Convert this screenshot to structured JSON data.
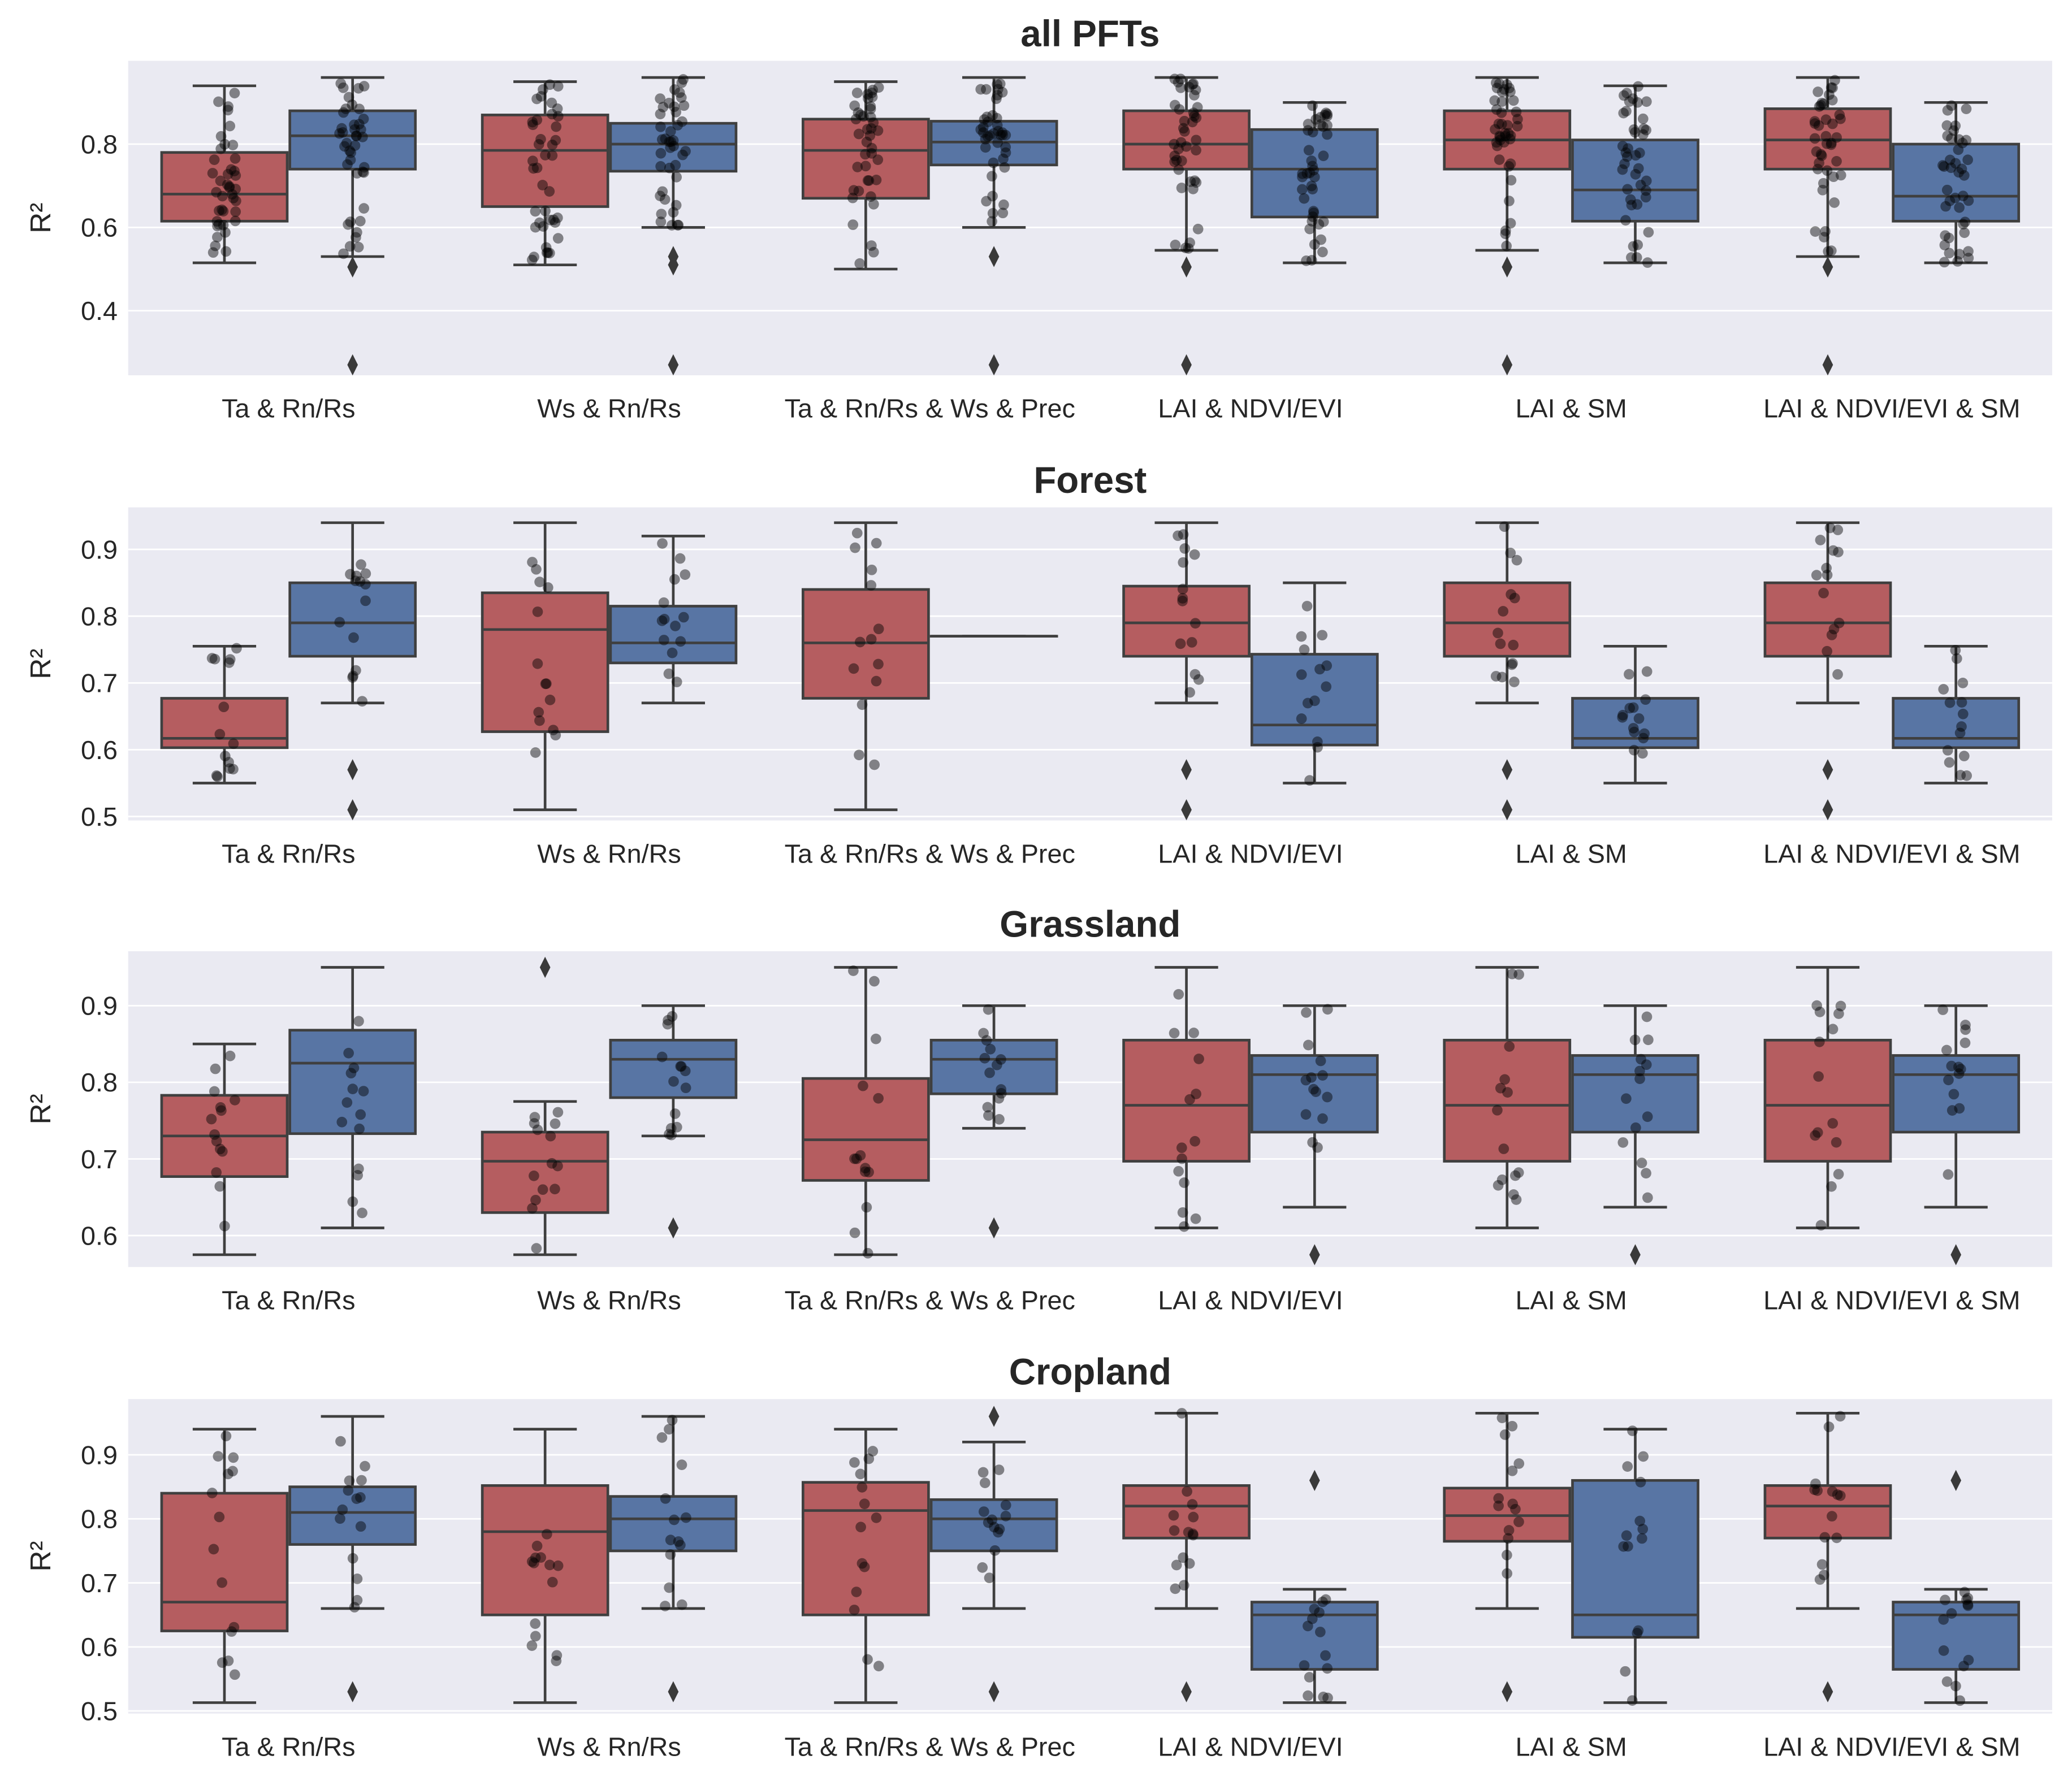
{
  "colors": {
    "red": "#b55d60",
    "blue": "#5875a4",
    "background": "#eaeaf2",
    "line": "#3f3f3f",
    "grid": "#ffffff"
  },
  "chart_data": [
    {
      "type": "box",
      "title": "all PFTs",
      "ylabel": "R²",
      "ylim": [
        0.245,
        1.0
      ],
      "yticks": [
        "0.4",
        "0.6",
        "0.8"
      ],
      "ytick_values": [
        0.4,
        0.6,
        0.8
      ],
      "categories": [
        "Ta & Rn/Rs",
        "Ws & Rn/Rs",
        "Ta & Rn/Rs & Ws & Prec",
        "LAI & NDVI/EVI",
        "LAI & SM",
        "LAI & NDVI/EVI & SM"
      ],
      "series": [
        {
          "name": "red",
          "boxes": [
            {
              "q1": 0.615,
              "med": 0.68,
              "q3": 0.78,
              "lo": 0.515,
              "hi": 0.94,
              "fliers": []
            },
            {
              "q1": 0.65,
              "med": 0.785,
              "q3": 0.87,
              "lo": 0.51,
              "hi": 0.95,
              "fliers": []
            },
            {
              "q1": 0.67,
              "med": 0.785,
              "q3": 0.86,
              "lo": 0.5,
              "hi": 0.95,
              "fliers": []
            },
            {
              "q1": 0.74,
              "med": 0.8,
              "q3": 0.88,
              "lo": 0.545,
              "hi": 0.96,
              "fliers": [
                0.505,
                0.27
              ]
            },
            {
              "q1": 0.74,
              "med": 0.81,
              "q3": 0.88,
              "lo": 0.545,
              "hi": 0.96,
              "fliers": [
                0.505,
                0.27
              ]
            },
            {
              "q1": 0.74,
              "med": 0.81,
              "q3": 0.885,
              "lo": 0.53,
              "hi": 0.96,
              "fliers": [
                0.505,
                0.27
              ]
            }
          ]
        },
        {
          "name": "blue",
          "boxes": [
            {
              "q1": 0.74,
              "med": 0.82,
              "q3": 0.88,
              "lo": 0.53,
              "hi": 0.96,
              "fliers": [
                0.505,
                0.27
              ]
            },
            {
              "q1": 0.735,
              "med": 0.8,
              "q3": 0.85,
              "lo": 0.6,
              "hi": 0.96,
              "fliers": [
                0.53,
                0.51,
                0.27
              ]
            },
            {
              "q1": 0.75,
              "med": 0.805,
              "q3": 0.855,
              "lo": 0.6,
              "hi": 0.96,
              "fliers": [
                0.53,
                0.27
              ]
            },
            {
              "q1": 0.625,
              "med": 0.74,
              "q3": 0.835,
              "lo": 0.515,
              "hi": 0.9,
              "fliers": []
            },
            {
              "q1": 0.615,
              "med": 0.69,
              "q3": 0.81,
              "lo": 0.515,
              "hi": 0.94,
              "fliers": []
            },
            {
              "q1": 0.615,
              "med": 0.675,
              "q3": 0.8,
              "lo": 0.515,
              "hi": 0.9,
              "fliers": []
            }
          ]
        }
      ]
    },
    {
      "type": "box",
      "title": "Forest",
      "ylabel": "R²",
      "ylim": [
        0.494,
        0.963
      ],
      "yticks": [
        "0.5",
        "0.6",
        "0.7",
        "0.8",
        "0.9"
      ],
      "ytick_values": [
        0.5,
        0.6,
        0.7,
        0.8,
        0.9
      ],
      "categories": [
        "Ta & Rn/Rs",
        "Ws & Rn/Rs",
        "Ta & Rn/Rs & Ws & Prec",
        "LAI & NDVI/EVI",
        "LAI & SM",
        "LAI & NDVI/EVI & SM"
      ],
      "series": [
        {
          "name": "red",
          "boxes": [
            {
              "q1": 0.603,
              "med": 0.617,
              "q3": 0.677,
              "lo": 0.55,
              "hi": 0.755,
              "fliers": []
            },
            {
              "q1": 0.627,
              "med": 0.78,
              "q3": 0.835,
              "lo": 0.51,
              "hi": 0.94,
              "fliers": []
            },
            {
              "q1": 0.677,
              "med": 0.76,
              "q3": 0.84,
              "lo": 0.51,
              "hi": 0.94,
              "fliers": []
            },
            {
              "q1": 0.74,
              "med": 0.79,
              "q3": 0.845,
              "lo": 0.67,
              "hi": 0.94,
              "fliers": [
                0.57,
                0.51
              ]
            },
            {
              "q1": 0.74,
              "med": 0.79,
              "q3": 0.85,
              "lo": 0.67,
              "hi": 0.94,
              "fliers": [
                0.57,
                0.51
              ]
            },
            {
              "q1": 0.74,
              "med": 0.79,
              "q3": 0.85,
              "lo": 0.67,
              "hi": 0.94,
              "fliers": [
                0.57,
                0.51
              ]
            }
          ]
        },
        {
          "name": "blue",
          "boxes": [
            {
              "q1": 0.74,
              "med": 0.79,
              "q3": 0.85,
              "lo": 0.67,
              "hi": 0.94,
              "fliers": [
                0.57,
                0.51
              ]
            },
            {
              "q1": 0.73,
              "med": 0.76,
              "q3": 0.815,
              "lo": 0.67,
              "hi": 0.92,
              "fliers": []
            },
            {
              "q1": 0.77,
              "med": 0.77,
              "q3": 0.77,
              "lo": 0.77,
              "hi": 0.77,
              "fliers": []
            },
            {
              "q1": 0.607,
              "med": 0.637,
              "q3": 0.743,
              "lo": 0.55,
              "hi": 0.85,
              "fliers": []
            },
            {
              "q1": 0.603,
              "med": 0.617,
              "q3": 0.677,
              "lo": 0.55,
              "hi": 0.755,
              "fliers": []
            },
            {
              "q1": 0.603,
              "med": 0.617,
              "q3": 0.677,
              "lo": 0.55,
              "hi": 0.755,
              "fliers": []
            }
          ]
        }
      ]
    },
    {
      "type": "box",
      "title": "Grassland",
      "ylabel": "R²",
      "ylim": [
        0.559,
        0.971
      ],
      "yticks": [
        "0.6",
        "0.7",
        "0.8",
        "0.9"
      ],
      "ytick_values": [
        0.6,
        0.7,
        0.8,
        0.9
      ],
      "categories": [
        "Ta & Rn/Rs",
        "Ws & Rn/Rs",
        "Ta & Rn/Rs & Ws & Prec",
        "LAI & NDVI/EVI",
        "LAI & SM",
        "LAI & NDVI/EVI & SM"
      ],
      "series": [
        {
          "name": "red",
          "boxes": [
            {
              "q1": 0.677,
              "med": 0.73,
              "q3": 0.783,
              "lo": 0.575,
              "hi": 0.85,
              "fliers": []
            },
            {
              "q1": 0.63,
              "med": 0.697,
              "q3": 0.735,
              "lo": 0.575,
              "hi": 0.775,
              "fliers": [
                0.95
              ]
            },
            {
              "q1": 0.672,
              "med": 0.725,
              "q3": 0.805,
              "lo": 0.575,
              "hi": 0.95,
              "fliers": []
            },
            {
              "q1": 0.697,
              "med": 0.77,
              "q3": 0.855,
              "lo": 0.61,
              "hi": 0.95,
              "fliers": []
            },
            {
              "q1": 0.697,
              "med": 0.77,
              "q3": 0.855,
              "lo": 0.61,
              "hi": 0.95,
              "fliers": []
            },
            {
              "q1": 0.697,
              "med": 0.77,
              "q3": 0.855,
              "lo": 0.61,
              "hi": 0.95,
              "fliers": []
            }
          ]
        },
        {
          "name": "blue",
          "boxes": [
            {
              "q1": 0.733,
              "med": 0.825,
              "q3": 0.868,
              "lo": 0.61,
              "hi": 0.95,
              "fliers": []
            },
            {
              "q1": 0.78,
              "med": 0.83,
              "q3": 0.855,
              "lo": 0.73,
              "hi": 0.9,
              "fliers": [
                0.61
              ]
            },
            {
              "q1": 0.785,
              "med": 0.83,
              "q3": 0.855,
              "lo": 0.74,
              "hi": 0.9,
              "fliers": [
                0.61
              ]
            },
            {
              "q1": 0.735,
              "med": 0.81,
              "q3": 0.835,
              "lo": 0.637,
              "hi": 0.9,
              "fliers": [
                0.575
              ]
            },
            {
              "q1": 0.735,
              "med": 0.81,
              "q3": 0.835,
              "lo": 0.637,
              "hi": 0.9,
              "fliers": [
                0.575
              ]
            },
            {
              "q1": 0.735,
              "med": 0.81,
              "q3": 0.835,
              "lo": 0.637,
              "hi": 0.9,
              "fliers": [
                0.575
              ]
            }
          ]
        }
      ]
    },
    {
      "type": "box",
      "title": "Cropland",
      "ylabel": "R²",
      "ylim": [
        0.496,
        0.987
      ],
      "yticks": [
        "0.5",
        "0.6",
        "0.7",
        "0.8",
        "0.9"
      ],
      "ytick_values": [
        0.5,
        0.6,
        0.7,
        0.8,
        0.9
      ],
      "categories": [
        "Ta & Rn/Rs",
        "Ws & Rn/Rs",
        "Ta & Rn/Rs & Ws & Prec",
        "LAI & NDVI/EVI",
        "LAI & SM",
        "LAI & NDVI/EVI & SM"
      ],
      "series": [
        {
          "name": "red",
          "boxes": [
            {
              "q1": 0.625,
              "med": 0.67,
              "q3": 0.84,
              "lo": 0.513,
              "hi": 0.94,
              "fliers": []
            },
            {
              "q1": 0.65,
              "med": 0.78,
              "q3": 0.852,
              "lo": 0.513,
              "hi": 0.94,
              "fliers": []
            },
            {
              "q1": 0.65,
              "med": 0.813,
              "q3": 0.857,
              "lo": 0.513,
              "hi": 0.94,
              "fliers": []
            },
            {
              "q1": 0.77,
              "med": 0.82,
              "q3": 0.852,
              "lo": 0.66,
              "hi": 0.965,
              "fliers": [
                0.53
              ]
            },
            {
              "q1": 0.765,
              "med": 0.805,
              "q3": 0.848,
              "lo": 0.66,
              "hi": 0.965,
              "fliers": [
                0.53
              ]
            },
            {
              "q1": 0.77,
              "med": 0.82,
              "q3": 0.852,
              "lo": 0.66,
              "hi": 0.965,
              "fliers": [
                0.53
              ]
            }
          ]
        },
        {
          "name": "blue",
          "boxes": [
            {
              "q1": 0.76,
              "med": 0.81,
              "q3": 0.85,
              "lo": 0.66,
              "hi": 0.96,
              "fliers": [
                0.53
              ]
            },
            {
              "q1": 0.75,
              "med": 0.8,
              "q3": 0.835,
              "lo": 0.66,
              "hi": 0.96,
              "fliers": [
                0.53
              ]
            },
            {
              "q1": 0.75,
              "med": 0.8,
              "q3": 0.83,
              "lo": 0.66,
              "hi": 0.92,
              "fliers": [
                0.53,
                0.96
              ]
            },
            {
              "q1": 0.565,
              "med": 0.65,
              "q3": 0.67,
              "lo": 0.513,
              "hi": 0.69,
              "fliers": [
                0.86
              ]
            },
            {
              "q1": 0.615,
              "med": 0.65,
              "q3": 0.86,
              "lo": 0.513,
              "hi": 0.94,
              "fliers": []
            },
            {
              "q1": 0.565,
              "med": 0.65,
              "q3": 0.67,
              "lo": 0.513,
              "hi": 0.69,
              "fliers": [
                0.86
              ]
            }
          ]
        }
      ]
    }
  ]
}
